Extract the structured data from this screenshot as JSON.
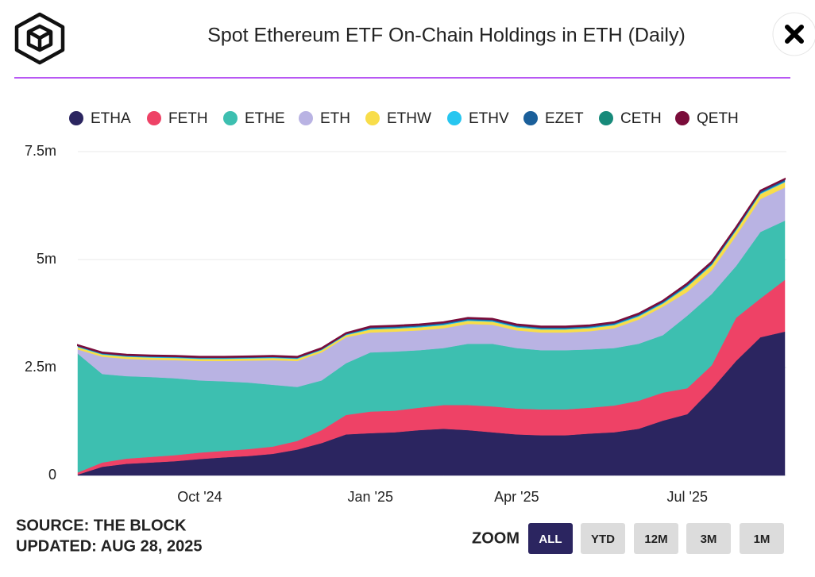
{
  "chart_data": {
    "type": "stacked-area",
    "title": "Spot Ethereum ETF On-Chain Holdings in ETH (Daily)",
    "categories": [
      null,
      null,
      null,
      null,
      null,
      "Oct '24",
      null,
      null,
      null,
      null,
      null,
      null,
      "Jan '25",
      null,
      null,
      null,
      null,
      null,
      "Apr '25",
      null,
      null,
      null,
      null,
      null,
      null,
      "Jul '25",
      null,
      null,
      null,
      null
    ],
    "series": [
      {
        "name": "ETHA",
        "color": "#2b2560",
        "values": [
          0.02,
          0.2,
          0.27,
          0.3,
          0.33,
          0.38,
          0.42,
          0.45,
          0.5,
          0.6,
          0.75,
          0.95,
          0.98,
          1.0,
          1.05,
          1.08,
          1.05,
          1.0,
          0.95,
          0.93,
          0.93,
          0.97,
          1.0,
          1.08,
          1.27,
          1.42,
          2.0,
          2.65,
          3.2,
          3.33
        ]
      },
      {
        "name": "FETH",
        "color": "#ee4266",
        "values": [
          0.05,
          0.1,
          0.12,
          0.13,
          0.14,
          0.15,
          0.15,
          0.16,
          0.17,
          0.2,
          0.3,
          0.45,
          0.5,
          0.5,
          0.52,
          0.55,
          0.58,
          0.6,
          0.6,
          0.6,
          0.6,
          0.6,
          0.62,
          0.65,
          0.65,
          0.6,
          0.55,
          1.0,
          0.9,
          1.2
        ]
      },
      {
        "name": "ETHE",
        "color": "#3dbfb0",
        "values": [
          2.75,
          2.05,
          1.91,
          1.85,
          1.78,
          1.67,
          1.61,
          1.54,
          1.43,
          1.25,
          1.15,
          1.2,
          1.37,
          1.37,
          1.33,
          1.32,
          1.42,
          1.45,
          1.4,
          1.37,
          1.37,
          1.35,
          1.33,
          1.32,
          1.33,
          1.68,
          1.65,
          1.2,
          1.54,
          1.37
        ]
      },
      {
        "name": "ETH",
        "color": "#b9b3e3",
        "values": [
          0.1,
          0.4,
          0.4,
          0.4,
          0.42,
          0.45,
          0.47,
          0.51,
          0.57,
          0.6,
          0.65,
          0.6,
          0.46,
          0.46,
          0.46,
          0.46,
          0.46,
          0.44,
          0.41,
          0.41,
          0.41,
          0.42,
          0.46,
          0.56,
          0.66,
          0.55,
          0.55,
          0.7,
          0.76,
          0.77
        ]
      },
      {
        "name": "ETHW",
        "color": "#f8dd4a",
        "values": [
          0.05,
          0.05,
          0.05,
          0.05,
          0.05,
          0.05,
          0.05,
          0.05,
          0.05,
          0.05,
          0.05,
          0.05,
          0.07,
          0.07,
          0.07,
          0.07,
          0.07,
          0.07,
          0.07,
          0.07,
          0.07,
          0.07,
          0.07,
          0.07,
          0.07,
          0.12,
          0.12,
          0.12,
          0.12,
          0.12
        ]
      },
      {
        "name": "ETHV",
        "color": "#27c6f0",
        "values": [
          0.015,
          0.015,
          0.015,
          0.015,
          0.015,
          0.015,
          0.015,
          0.015,
          0.015,
          0.015,
          0.015,
          0.015,
          0.02,
          0.02,
          0.02,
          0.02,
          0.02,
          0.02,
          0.02,
          0.02,
          0.02,
          0.02,
          0.02,
          0.02,
          0.02,
          0.02,
          0.02,
          0.02,
          0.02,
          0.02
        ]
      },
      {
        "name": "EZET",
        "color": "#1a5f9a",
        "values": [
          0.015,
          0.015,
          0.015,
          0.015,
          0.015,
          0.015,
          0.015,
          0.015,
          0.015,
          0.015,
          0.015,
          0.015,
          0.03,
          0.03,
          0.03,
          0.03,
          0.03,
          0.03,
          0.03,
          0.03,
          0.03,
          0.03,
          0.03,
          0.03,
          0.03,
          0.04,
          0.04,
          0.04,
          0.04,
          0.04
        ]
      },
      {
        "name": "CETH",
        "color": "#178a7a",
        "values": [
          0.01,
          0.01,
          0.01,
          0.01,
          0.01,
          0.01,
          0.01,
          0.01,
          0.01,
          0.01,
          0.01,
          0.01,
          0.01,
          0.01,
          0.01,
          0.01,
          0.01,
          0.01,
          0.01,
          0.01,
          0.01,
          0.01,
          0.01,
          0.01,
          0.01,
          0.01,
          0.01,
          0.01,
          0.01,
          0.01
        ]
      },
      {
        "name": "QETH",
        "color": "#7a0c3a",
        "values": [
          0.01,
          0.01,
          0.01,
          0.01,
          0.01,
          0.01,
          0.01,
          0.01,
          0.01,
          0.01,
          0.01,
          0.01,
          0.01,
          0.01,
          0.01,
          0.01,
          0.01,
          0.01,
          0.01,
          0.01,
          0.01,
          0.01,
          0.01,
          0.01,
          0.01,
          0.01,
          0.01,
          0.01,
          0.01,
          0.01
        ]
      }
    ],
    "ylim": [
      0,
      7.5
    ],
    "yticks": [
      0,
      {
        "value": 2.5,
        "label": "2.5m"
      },
      {
        "value": 5,
        "label": "5m"
      },
      {
        "value": 7.5,
        "label": "7.5m"
      }
    ],
    "grid": true
  },
  "source": "SOURCE: THE BLOCK",
  "updated": "UPDATED: AUG 28, 2025",
  "zoom": {
    "label": "ZOOM",
    "options": [
      "ALL",
      "YTD",
      "12M",
      "3M",
      "1M"
    ],
    "active": "ALL"
  }
}
